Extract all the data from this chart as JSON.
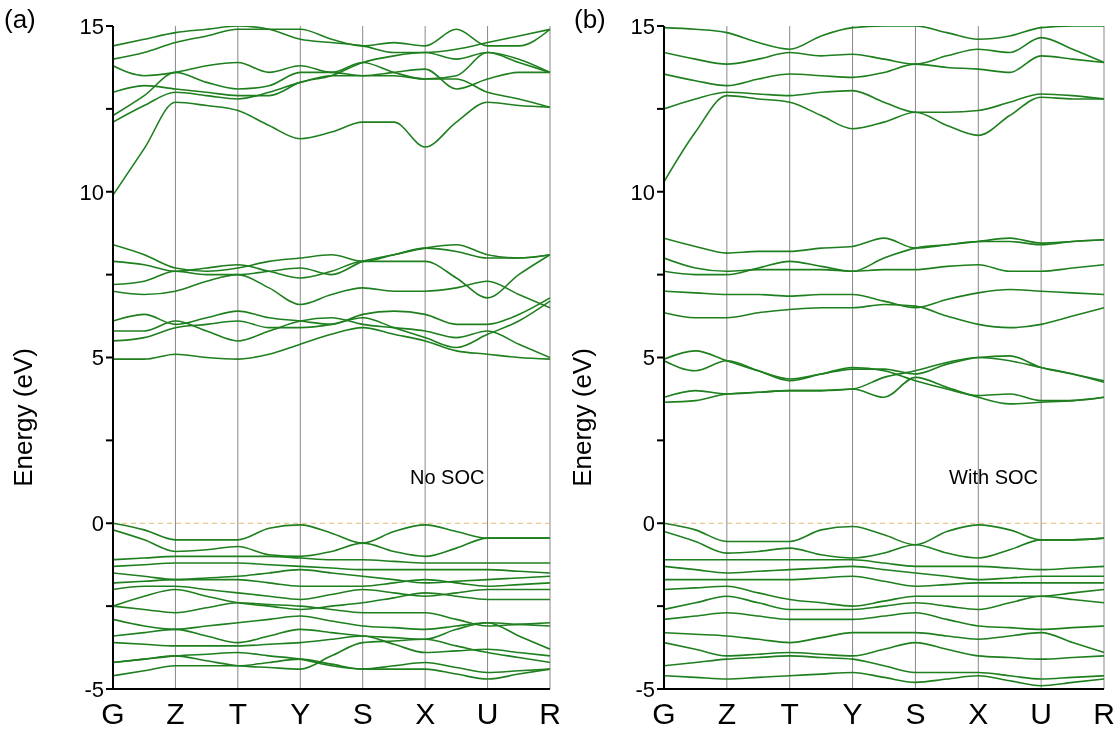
{
  "chart_data": [
    {
      "type": "line",
      "title": "(a)",
      "ylabel": "Energy (eV)",
      "annotations": [
        "No SOC"
      ],
      "categories": [
        "G",
        null,
        "Z",
        null,
        "T",
        null,
        "Y",
        null,
        "S",
        null,
        "X",
        null,
        "U",
        null,
        "R"
      ],
      "ylim": [
        -5,
        15
      ],
      "yticks": [
        -5,
        {
          "value": -2.5,
          "label": null
        },
        0,
        {
          "value": 2.5,
          "label": null
        },
        5,
        {
          "value": 7.5,
          "label": null
        },
        10,
        {
          "value": 12.5,
          "label": null
        },
        15
      ],
      "grid": "x",
      "marker": "none",
      "ref_lines": [
        {
          "axis": "y",
          "value": 0,
          "label": null,
          "color": "#e8b878",
          "line_style": "dashed"
        }
      ],
      "series": [
        {
          "color": "#1e7f1e",
          "values": [
            9.9,
            11.3,
            12.7,
            12.6,
            12.45,
            12.0,
            11.6,
            11.8,
            12.1,
            12.1,
            11.35,
            12.1,
            12.7,
            12.6,
            12.55
          ]
        },
        {
          "color": "#1e7f1e",
          "values": [
            12.1,
            12.6,
            13.0,
            12.9,
            12.8,
            13.0,
            13.3,
            13.5,
            13.5,
            13.5,
            13.4,
            13.4,
            13.0,
            12.8,
            12.55
          ]
        },
        {
          "color": "#1e7f1e",
          "values": [
            12.3,
            12.9,
            13.6,
            13.3,
            13.1,
            13.2,
            13.6,
            13.6,
            13.5,
            13.6,
            13.7,
            13.1,
            13.4,
            13.6,
            13.6
          ]
        },
        {
          "color": "#1e7f1e",
          "values": [
            13.0,
            13.2,
            13.1,
            13.0,
            12.9,
            12.9,
            13.3,
            13.5,
            13.9,
            14.1,
            14.2,
            14.0,
            14.2,
            14.0,
            13.6
          ]
        },
        {
          "color": "#1e7f1e",
          "values": [
            13.8,
            13.5,
            13.6,
            13.8,
            13.9,
            13.6,
            13.8,
            13.6,
            13.9,
            13.6,
            13.4,
            13.5,
            14.2,
            13.9,
            13.6
          ]
        },
        {
          "color": "#1e7f1e",
          "values": [
            14.4,
            14.6,
            14.8,
            14.9,
            15,
            14.9,
            14.6,
            14.5,
            14.4,
            14.2,
            14.2,
            14.3,
            14.5,
            14.7,
            14.9
          ]
        },
        {
          "color": "#1e7f1e",
          "values": [
            14.0,
            14.2,
            14.5,
            14.7,
            14.9,
            14.9,
            14.9,
            14.6,
            14.4,
            14.5,
            14.4,
            14.9,
            14.4,
            14.4,
            14.9
          ]
        },
        {
          "color": "#1e7f1e",
          "values": [
            4.95,
            4.95,
            5.1,
            5.0,
            4.95,
            5.1,
            5.4,
            5.7,
            5.9,
            5.7,
            5.5,
            5.2,
            5.1,
            5.0,
            4.95
          ]
        },
        {
          "color": "#1e7f1e",
          "values": [
            5.5,
            5.6,
            5.9,
            6.0,
            6.1,
            5.9,
            5.9,
            6.0,
            6.2,
            5.9,
            5.6,
            5.3,
            5.7,
            6.1,
            6.7
          ]
        },
        {
          "color": "#1e7f1e",
          "values": [
            5.8,
            5.8,
            6.1,
            5.8,
            5.5,
            5.8,
            6.1,
            6.2,
            6.0,
            5.9,
            5.8,
            5.6,
            5.8,
            5.4,
            5.0
          ]
        },
        {
          "color": "#1e7f1e",
          "values": [
            6.1,
            6.3,
            6.0,
            6.2,
            6.4,
            6.2,
            6.1,
            6.0,
            6.3,
            6.4,
            6.3,
            6.0,
            6.0,
            6.3,
            6.8
          ]
        },
        {
          "color": "#1e7f1e",
          "values": [
            7.0,
            6.9,
            7.0,
            7.3,
            7.5,
            7.1,
            6.6,
            6.9,
            7.1,
            7.0,
            7.0,
            7.1,
            7.3,
            6.9,
            6.5
          ]
        },
        {
          "color": "#1e7f1e",
          "values": [
            7.2,
            7.3,
            7.6,
            7.5,
            7.5,
            7.6,
            7.7,
            7.5,
            7.9,
            8.1,
            8.3,
            8.2,
            8.0,
            8.0,
            8.1
          ]
        },
        {
          "color": "#1e7f1e",
          "values": [
            7.9,
            7.8,
            7.6,
            7.7,
            7.8,
            7.6,
            7.4,
            7.6,
            7.9,
            7.9,
            7.9,
            7.4,
            6.8,
            7.5,
            8.1
          ]
        },
        {
          "color": "#1e7f1e",
          "values": [
            8.4,
            8.1,
            7.7,
            7.6,
            7.7,
            7.9,
            8.0,
            8.1,
            7.9,
            8.1,
            8.3,
            8.4,
            8.1,
            8.0,
            8.1
          ]
        },
        {
          "color": "#1e7f1e",
          "values": [
            0,
            -0.2,
            -0.5,
            -0.5,
            -0.5,
            -0.15,
            -0.05,
            -0.3,
            -0.6,
            -0.25,
            -0.05,
            -0.25,
            -0.45,
            -0.45,
            -0.45
          ]
        },
        {
          "color": "#1e7f1e",
          "values": [
            -0.2,
            -0.5,
            -0.85,
            -0.8,
            -0.7,
            -0.95,
            -1.0,
            -0.85,
            -0.6,
            -0.85,
            -1.0,
            -0.75,
            -0.45,
            -0.45,
            -0.45
          ]
        },
        {
          "color": "#1e7f1e",
          "values": [
            -1.1,
            -1.05,
            -1.0,
            -1.0,
            -1.0,
            -1.0,
            -1.05,
            -1.1,
            -1.1,
            -1.15,
            -1.2,
            -1.2,
            -1.2,
            -1.2,
            -1.2
          ]
        },
        {
          "color": "#1e7f1e",
          "values": [
            -1.3,
            -1.25,
            -1.2,
            -1.2,
            -1.2,
            -1.25,
            -1.3,
            -1.35,
            -1.4,
            -1.4,
            -1.4,
            -1.4,
            -1.4,
            -1.45,
            -1.5
          ]
        },
        {
          "color": "#1e7f1e",
          "values": [
            -1.5,
            -1.6,
            -1.7,
            -1.65,
            -1.6,
            -1.5,
            -1.4,
            -1.5,
            -1.6,
            -1.7,
            -1.8,
            -1.75,
            -1.7,
            -1.65,
            -1.6
          ]
        },
        {
          "color": "#1e7f1e",
          "values": [
            -1.8,
            -1.75,
            -1.7,
            -1.7,
            -1.7,
            -1.8,
            -1.9,
            -1.9,
            -1.9,
            -1.8,
            -1.7,
            -1.8,
            -1.9,
            -1.85,
            -1.8
          ]
        },
        {
          "color": "#1e7f1e",
          "values": [
            -2.0,
            -1.9,
            -1.9,
            -2.0,
            -2.1,
            -2.2,
            -2.3,
            -2.15,
            -2.0,
            -2.1,
            -2.2,
            -2.1,
            -2.0,
            -2.0,
            -2.0
          ]
        },
        {
          "color": "#1e7f1e",
          "values": [
            -2.5,
            -2.2,
            -2.0,
            -2.2,
            -2.4,
            -2.5,
            -2.6,
            -2.5,
            -2.4,
            -2.25,
            -2.1,
            -2.2,
            -2.3,
            -2.3,
            -2.3
          ]
        },
        {
          "color": "#1e7f1e",
          "values": [
            -2.5,
            -2.6,
            -2.7,
            -2.55,
            -2.4,
            -2.45,
            -2.5,
            -2.6,
            -2.7,
            -2.7,
            -2.7,
            -2.9,
            -3.1,
            -3.05,
            -3.0
          ]
        },
        {
          "color": "#1e7f1e",
          "values": [
            -2.9,
            -3.1,
            -3.2,
            -3.1,
            -3.0,
            -2.9,
            -2.8,
            -2.95,
            -3.1,
            -3.15,
            -3.2,
            -3.1,
            -3.0,
            -3.05,
            -3.1
          ]
        },
        {
          "color": "#1e7f1e",
          "values": [
            -3.4,
            -3.3,
            -3.2,
            -3.4,
            -3.6,
            -3.4,
            -3.2,
            -3.3,
            -3.4,
            -3.45,
            -3.5,
            -3.2,
            -3.0,
            -3.4,
            -3.8
          ]
        },
        {
          "color": "#1e7f1e",
          "values": [
            -3.6,
            -3.65,
            -3.7,
            -3.7,
            -3.7,
            -3.65,
            -3.6,
            -3.5,
            -3.4,
            -3.65,
            -3.9,
            -3.85,
            -3.8,
            -3.9,
            -4.0
          ]
        },
        {
          "color": "#1e7f1e",
          "values": [
            -4.2,
            -4.1,
            -4.0,
            -3.95,
            -3.9,
            -4.0,
            -4.1,
            -4.3,
            -4.4,
            -4.3,
            -4.2,
            -4.35,
            -4.5,
            -4.45,
            -4.4
          ]
        },
        {
          "color": "#1e7f1e",
          "values": [
            -4.6,
            -4.45,
            -4.3,
            -4.3,
            -4.3,
            -4.2,
            -4.1,
            -4.25,
            -4.4,
            -4.4,
            -4.4,
            -4.55,
            -4.7,
            -4.55,
            -4.4
          ]
        },
        {
          "color": "#1e7f1e",
          "values": [
            -4.2,
            -4.1,
            -4.0,
            -4.15,
            -4.3,
            -4.35,
            -4.4,
            -4.0,
            -3.6,
            -3.55,
            -3.5,
            -3.7,
            -3.9,
            -4.05,
            -4.2
          ]
        }
      ]
    },
    {
      "type": "line",
      "title": "(b)",
      "ylabel": "Energy (eV)",
      "annotations": [
        "With SOC"
      ],
      "categories": [
        "G",
        null,
        "Z",
        null,
        "T",
        null,
        "Y",
        null,
        "S",
        null,
        "X",
        null,
        "U",
        null,
        "R"
      ],
      "ylim": [
        -5,
        15
      ],
      "yticks": [
        -5,
        {
          "value": -2.5,
          "label": null
        },
        0,
        {
          "value": 2.5,
          "label": null
        },
        5,
        {
          "value": 7.5,
          "label": null
        },
        10,
        {
          "value": 12.5,
          "label": null
        },
        15
      ],
      "grid": "x",
      "marker": "none",
      "ref_lines": [
        {
          "axis": "y",
          "value": 0,
          "label": null,
          "color": "#e8b878",
          "line_style": "dashed"
        }
      ],
      "series": [
        {
          "color": "#1e7f1e",
          "values": [
            10.3,
            11.8,
            12.9,
            12.8,
            12.7,
            12.3,
            11.9,
            12.1,
            12.4,
            12.0,
            11.7,
            12.3,
            12.85,
            12.8,
            12.8
          ]
        },
        {
          "color": "#1e7f1e",
          "values": [
            12.5,
            12.8,
            13.0,
            12.95,
            12.9,
            13.0,
            13.05,
            12.7,
            12.4,
            12.4,
            12.45,
            12.7,
            12.95,
            12.9,
            12.8
          ]
        },
        {
          "color": "#1e7f1e",
          "values": [
            13.55,
            13.35,
            13.2,
            13.4,
            13.55,
            13.5,
            13.45,
            13.6,
            13.85,
            13.75,
            13.7,
            13.6,
            14.1,
            14.0,
            13.9
          ]
        },
        {
          "color": "#1e7f1e",
          "values": [
            14.2,
            14.0,
            13.85,
            14.0,
            14.2,
            14.1,
            14.15,
            14.0,
            13.85,
            14.1,
            14.3,
            14.2,
            14.65,
            14.3,
            13.9
          ]
        },
        {
          "color": "#1e7f1e",
          "values": [
            14.95,
            14.9,
            14.8,
            14.5,
            14.3,
            14.7,
            14.95,
            15,
            15,
            14.8,
            14.6,
            14.7,
            14.95,
            15,
            15
          ]
        },
        {
          "color": "#1e7f1e",
          "values": [
            3.65,
            3.7,
            3.9,
            3.95,
            4.0,
            4.0,
            4.05,
            3.8,
            4.4,
            4.1,
            3.8,
            3.6,
            3.65,
            3.7,
            3.8
          ]
        },
        {
          "color": "#1e7f1e",
          "values": [
            3.8,
            4.0,
            3.9,
            3.95,
            4.0,
            4.0,
            4.05,
            4.4,
            4.6,
            4.85,
            5.0,
            4.9,
            4.7,
            4.5,
            4.25
          ]
        },
        {
          "color": "#1e7f1e",
          "values": [
            4.9,
            4.6,
            4.9,
            4.6,
            4.3,
            4.5,
            4.7,
            4.6,
            4.3,
            4.05,
            3.85,
            3.9,
            3.7,
            3.7,
            3.8
          ]
        },
        {
          "color": "#1e7f1e",
          "values": [
            4.95,
            5.2,
            4.9,
            4.6,
            4.35,
            4.5,
            4.65,
            4.65,
            4.5,
            4.8,
            5.0,
            5.05,
            4.7,
            4.5,
            4.3
          ]
        },
        {
          "color": "#1e7f1e",
          "values": [
            6.35,
            6.2,
            6.2,
            6.35,
            6.45,
            6.5,
            6.5,
            6.6,
            6.55,
            6.25,
            6.0,
            5.9,
            6.0,
            6.25,
            6.5
          ]
        },
        {
          "color": "#1e7f1e",
          "values": [
            7.0,
            6.95,
            6.9,
            6.9,
            6.85,
            6.9,
            6.9,
            6.7,
            6.5,
            6.75,
            6.95,
            7.05,
            7.0,
            6.95,
            6.9
          ]
        },
        {
          "color": "#1e7f1e",
          "values": [
            7.6,
            7.5,
            7.5,
            7.7,
            7.9,
            7.75,
            7.6,
            7.65,
            7.65,
            7.75,
            7.8,
            7.6,
            7.6,
            7.7,
            7.8
          ]
        },
        {
          "color": "#1e7f1e",
          "values": [
            8.0,
            7.7,
            7.6,
            7.65,
            7.65,
            7.65,
            7.6,
            8.0,
            8.3,
            8.4,
            8.5,
            8.5,
            8.4,
            8.5,
            8.55
          ]
        },
        {
          "color": "#1e7f1e",
          "values": [
            8.6,
            8.35,
            8.15,
            8.2,
            8.2,
            8.3,
            8.35,
            8.6,
            8.3,
            8.4,
            8.5,
            8.6,
            8.45,
            8.5,
            8.55
          ]
        },
        {
          "color": "#1e7f1e",
          "values": [
            0,
            -0.2,
            -0.55,
            -0.55,
            -0.55,
            -0.2,
            -0.1,
            -0.35,
            -0.65,
            -0.25,
            -0.05,
            -0.2,
            -0.5,
            -0.5,
            -0.45
          ]
        },
        {
          "color": "#1e7f1e",
          "values": [
            -0.25,
            -0.55,
            -0.9,
            -0.85,
            -0.75,
            -0.95,
            -1.05,
            -0.9,
            -0.65,
            -0.9,
            -1.05,
            -0.8,
            -0.5,
            -0.5,
            -0.45
          ]
        },
        {
          "color": "#1e7f1e",
          "values": [
            -1.1,
            -1.1,
            -1.1,
            -1.1,
            -1.1,
            -1.1,
            -1.1,
            -1.2,
            -1.3,
            -1.3,
            -1.3,
            -1.35,
            -1.4,
            -1.35,
            -1.3
          ]
        },
        {
          "color": "#1e7f1e",
          "values": [
            -1.3,
            -1.4,
            -1.5,
            -1.45,
            -1.4,
            -1.35,
            -1.3,
            -1.4,
            -1.5,
            -1.6,
            -1.7,
            -1.65,
            -1.6,
            -1.6,
            -1.6
          ]
        },
        {
          "color": "#1e7f1e",
          "values": [
            -1.7,
            -1.7,
            -1.7,
            -1.7,
            -1.7,
            -1.65,
            -1.6,
            -1.75,
            -1.9,
            -1.85,
            -1.8,
            -1.8,
            -1.8,
            -1.8,
            -1.8
          ]
        },
        {
          "color": "#1e7f1e",
          "values": [
            -2.0,
            -1.95,
            -1.9,
            -2.1,
            -2.3,
            -2.4,
            -2.5,
            -2.35,
            -2.2,
            -2.2,
            -2.2,
            -2.2,
            -2.2,
            -2.1,
            -2.0
          ]
        },
        {
          "color": "#1e7f1e",
          "values": [
            -2.6,
            -2.4,
            -2.2,
            -2.4,
            -2.6,
            -2.6,
            -2.6,
            -2.5,
            -2.4,
            -2.5,
            -2.6,
            -2.4,
            -2.2,
            -2.3,
            -2.4
          ]
        },
        {
          "color": "#1e7f1e",
          "values": [
            -2.9,
            -2.8,
            -2.7,
            -2.8,
            -2.9,
            -2.9,
            -2.9,
            -2.8,
            -2.7,
            -2.9,
            -3.1,
            -3.15,
            -3.2,
            -3.15,
            -3.1
          ]
        },
        {
          "color": "#1e7f1e",
          "values": [
            -3.3,
            -3.35,
            -3.4,
            -3.5,
            -3.6,
            -3.45,
            -3.3,
            -3.3,
            -3.3,
            -3.4,
            -3.5,
            -3.4,
            -3.3,
            -3.6,
            -3.9
          ]
        },
        {
          "color": "#1e7f1e",
          "values": [
            -3.6,
            -3.8,
            -4.0,
            -3.95,
            -3.9,
            -3.95,
            -4.0,
            -3.8,
            -3.6,
            -3.8,
            -4.0,
            -4.05,
            -4.1,
            -4.05,
            -4.0
          ]
        },
        {
          "color": "#1e7f1e",
          "values": [
            -4.3,
            -4.2,
            -4.1,
            -4.05,
            -4.0,
            -4.05,
            -4.1,
            -4.3,
            -4.5,
            -4.5,
            -4.5,
            -4.6,
            -4.7,
            -4.65,
            -4.6
          ]
        },
        {
          "color": "#1e7f1e",
          "values": [
            -4.6,
            -4.65,
            -4.7,
            -4.65,
            -4.6,
            -4.55,
            -4.5,
            -4.65,
            -4.8,
            -4.7,
            -4.6,
            -4.75,
            -4.9,
            -4.8,
            -4.7
          ]
        }
      ]
    }
  ]
}
